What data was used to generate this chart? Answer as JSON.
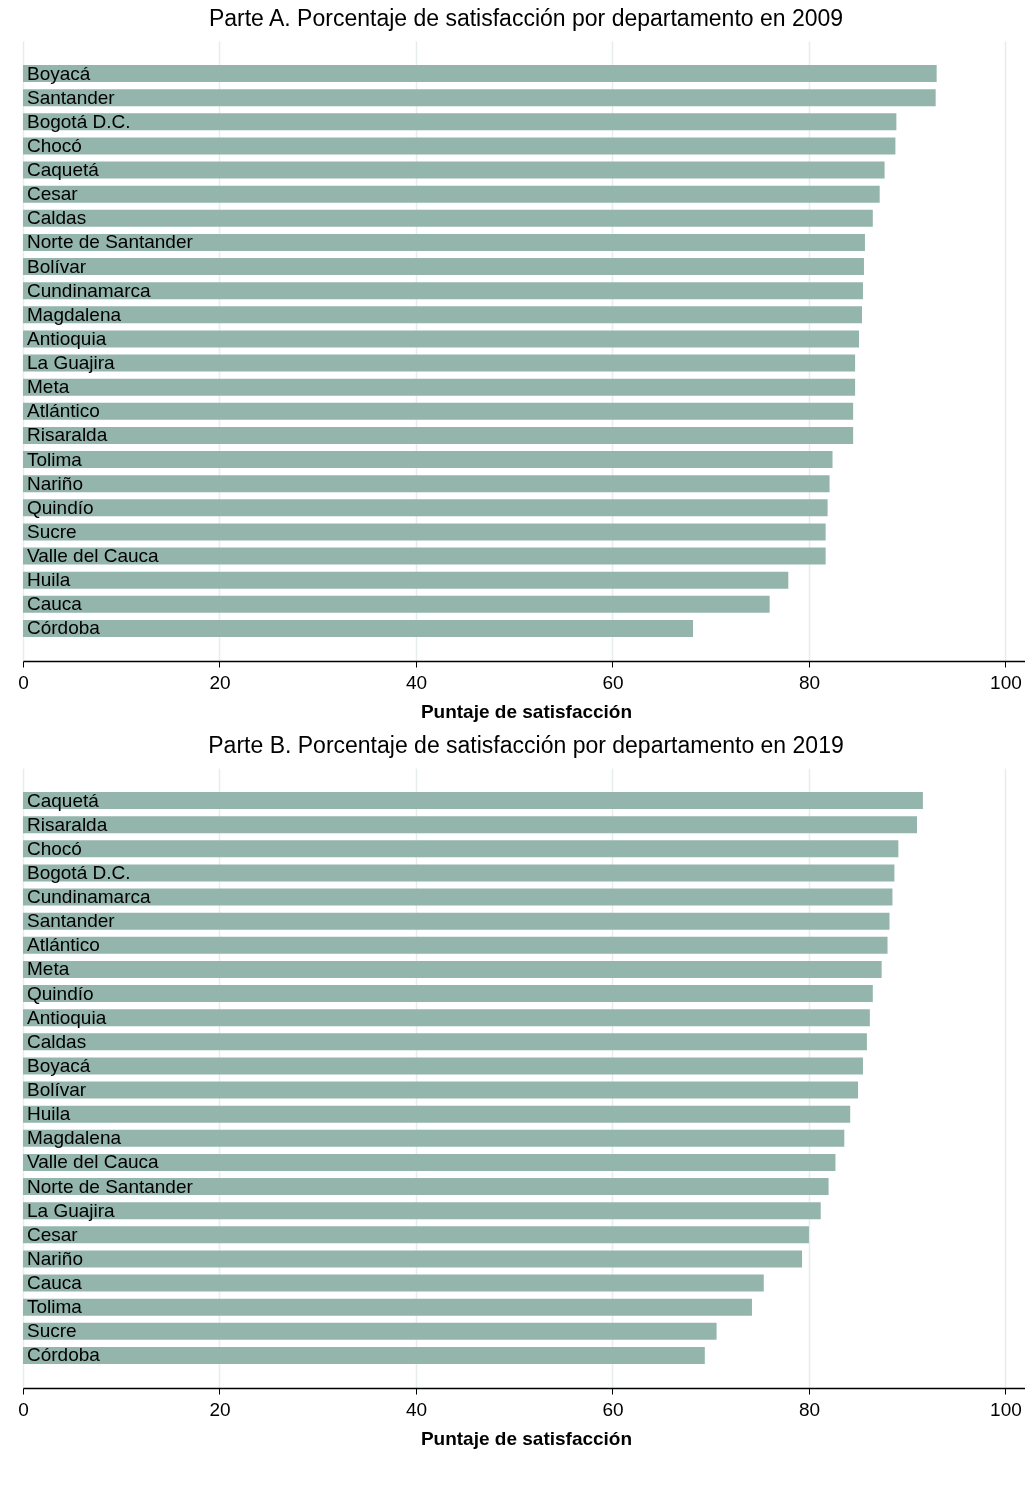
{
  "chart_data": [
    {
      "type": "bar",
      "orientation": "horizontal",
      "title": "Parte A. Porcentaje de satisfacción por departamento en 2009",
      "xlabel": "Puntaje de satisfacción",
      "categories": [
        "Boyacá",
        "Santander",
        "Bogotá D.C.",
        "Chocó",
        "Caquetá",
        "Cesar",
        "Caldas",
        "Norte de Santander",
        "Bolívar",
        "Cundinamarca",
        "Magdalena",
        "Antioquia",
        "La Guajira",
        "Meta",
        "Atlántico",
        "Risaralda",
        "Tolima",
        "Nariño",
        "Quindío",
        "Sucre",
        "Valle del Cauca",
        "Huila",
        "Cauca",
        "Córdoba"
      ],
      "values": [
        93.0,
        92.9,
        88.9,
        88.8,
        87.7,
        87.2,
        86.5,
        85.7,
        85.6,
        85.5,
        85.4,
        85.1,
        84.7,
        84.7,
        84.5,
        84.5,
        82.4,
        82.1,
        81.9,
        81.7,
        81.7,
        77.9,
        76.0,
        68.2
      ],
      "color": "#93b5ab",
      "xlim": [
        0,
        102.4
      ],
      "xticks": [
        0,
        20,
        40,
        60,
        80,
        100
      ],
      "grid": "x"
    },
    {
      "type": "bar",
      "orientation": "horizontal",
      "title": "Parte B. Porcentaje de satisfacción por departamento en 2019",
      "xlabel": "Puntaje de satisfacción",
      "categories": [
        "Caquetá",
        "Risaralda",
        "Chocó",
        "Bogotá D.C.",
        "Cundinamarca",
        "Santander",
        "Atlántico",
        "Meta",
        "Quindío",
        "Antioquia",
        "Caldas",
        "Boyacá",
        "Bolívar",
        "Huila",
        "Magdalena",
        "Valle del Cauca",
        "Norte de Santander",
        "La Guajira",
        "Cesar",
        "Nariño",
        "Cauca",
        "Tolima",
        "Sucre",
        "Córdoba"
      ],
      "values": [
        91.6,
        91.0,
        89.1,
        88.7,
        88.5,
        88.2,
        88.0,
        87.4,
        86.5,
        86.2,
        85.9,
        85.5,
        85.0,
        84.2,
        83.6,
        82.7,
        82.0,
        81.2,
        80.0,
        79.3,
        75.4,
        74.2,
        70.6,
        69.4
      ],
      "color": "#93b5ab",
      "xlim": [
        0,
        102.4
      ],
      "xticks": [
        0,
        20,
        40,
        60,
        80,
        100
      ],
      "grid": "x"
    }
  ]
}
